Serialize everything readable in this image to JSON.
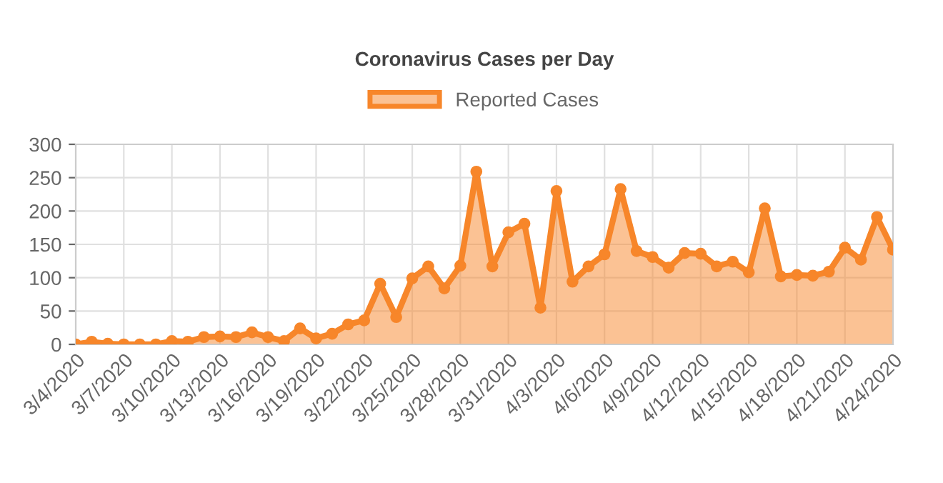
{
  "chart_data": {
    "type": "area",
    "title": "Coronavirus Cases per Day",
    "categories": [
      "3/4/2020",
      null,
      null,
      "3/7/2020",
      null,
      null,
      "3/10/2020",
      null,
      null,
      "3/13/2020",
      null,
      null,
      "3/16/2020",
      null,
      null,
      "3/19/2020",
      null,
      null,
      "3/22/2020",
      null,
      null,
      "3/25/2020",
      null,
      null,
      "3/28/2020",
      null,
      null,
      "3/31/2020",
      null,
      null,
      "4/3/2020",
      null,
      null,
      "4/6/2020",
      null,
      null,
      "4/9/2020",
      null,
      null,
      "4/12/2020",
      null,
      null,
      "4/15/2020",
      null,
      null,
      "4/18/2020",
      null,
      null,
      "4/21/2020",
      null,
      null,
      "4/24/2020"
    ],
    "series": [
      {
        "name": "Reported Cases",
        "color": "#f7862a",
        "values": [
          0,
          4,
          1,
          0,
          0,
          0,
          5,
          4,
          11,
          12,
          11,
          18,
          11,
          5,
          24,
          9,
          16,
          30,
          36,
          91,
          41,
          99,
          117,
          84,
          118,
          259,
          117,
          168,
          181,
          55,
          230,
          94,
          117,
          135,
          233,
          140,
          131,
          115,
          137,
          136,
          117,
          124,
          108,
          204,
          102,
          104,
          103,
          109,
          145,
          127,
          191,
          142
        ]
      }
    ],
    "ylim": [
      0,
      300
    ],
    "yticks": [
      0,
      50,
      100,
      150,
      200,
      250,
      300
    ],
    "grid": true,
    "legend": "top",
    "marker": "circle",
    "line_style": "solid"
  }
}
